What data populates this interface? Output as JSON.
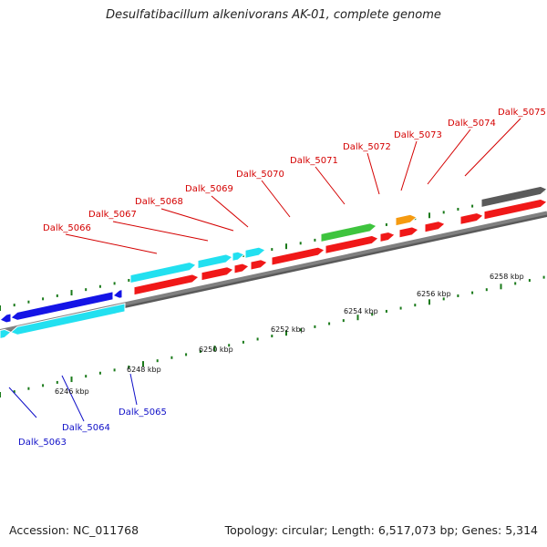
{
  "title": "Desulfatibacillum alkenivorans AK-01, complete genome",
  "footer": {
    "accession": "Accession: NC_011768",
    "summary": "Topology: circular; Length: 6,517,073 bp; Genes: 5,314"
  },
  "colors": {
    "backbone": "#808080",
    "tick": "#1a7a1a",
    "label_red": "#d40000",
    "label_blue": "#1010c8",
    "gene_red": "#f01818",
    "gene_cyan": "#22e0f0",
    "gene_blue": "#1414e6",
    "gene_green": "#3ec43e",
    "gene_orange": "#f59a10",
    "gene_gray": "#5a5a5a"
  },
  "scale_labels": [
    {
      "text": "6246 kbp"
    },
    {
      "text": "6248 kbp"
    },
    {
      "text": "6250 kbp"
    },
    {
      "text": "6252 kbp"
    },
    {
      "text": "6254 kbp"
    },
    {
      "text": "6256 kbp"
    },
    {
      "text": "6258 kbp"
    }
  ],
  "gene_labels": [
    {
      "text": "Dalk_5063",
      "color": "blue"
    },
    {
      "text": "Dalk_5064",
      "color": "blue"
    },
    {
      "text": "Dalk_5065",
      "color": "blue"
    },
    {
      "text": "Dalk_5066",
      "color": "red"
    },
    {
      "text": "Dalk_5067",
      "color": "red"
    },
    {
      "text": "Dalk_5068",
      "color": "red"
    },
    {
      "text": "Dalk_5069",
      "color": "red"
    },
    {
      "text": "Dalk_5070",
      "color": "red"
    },
    {
      "text": "Dalk_5071",
      "color": "red"
    },
    {
      "text": "Dalk_5072",
      "color": "red"
    },
    {
      "text": "Dalk_5073",
      "color": "red"
    },
    {
      "text": "Dalk_5074",
      "color": "red"
    },
    {
      "text": "Dalk_5075",
      "color": "red"
    }
  ]
}
